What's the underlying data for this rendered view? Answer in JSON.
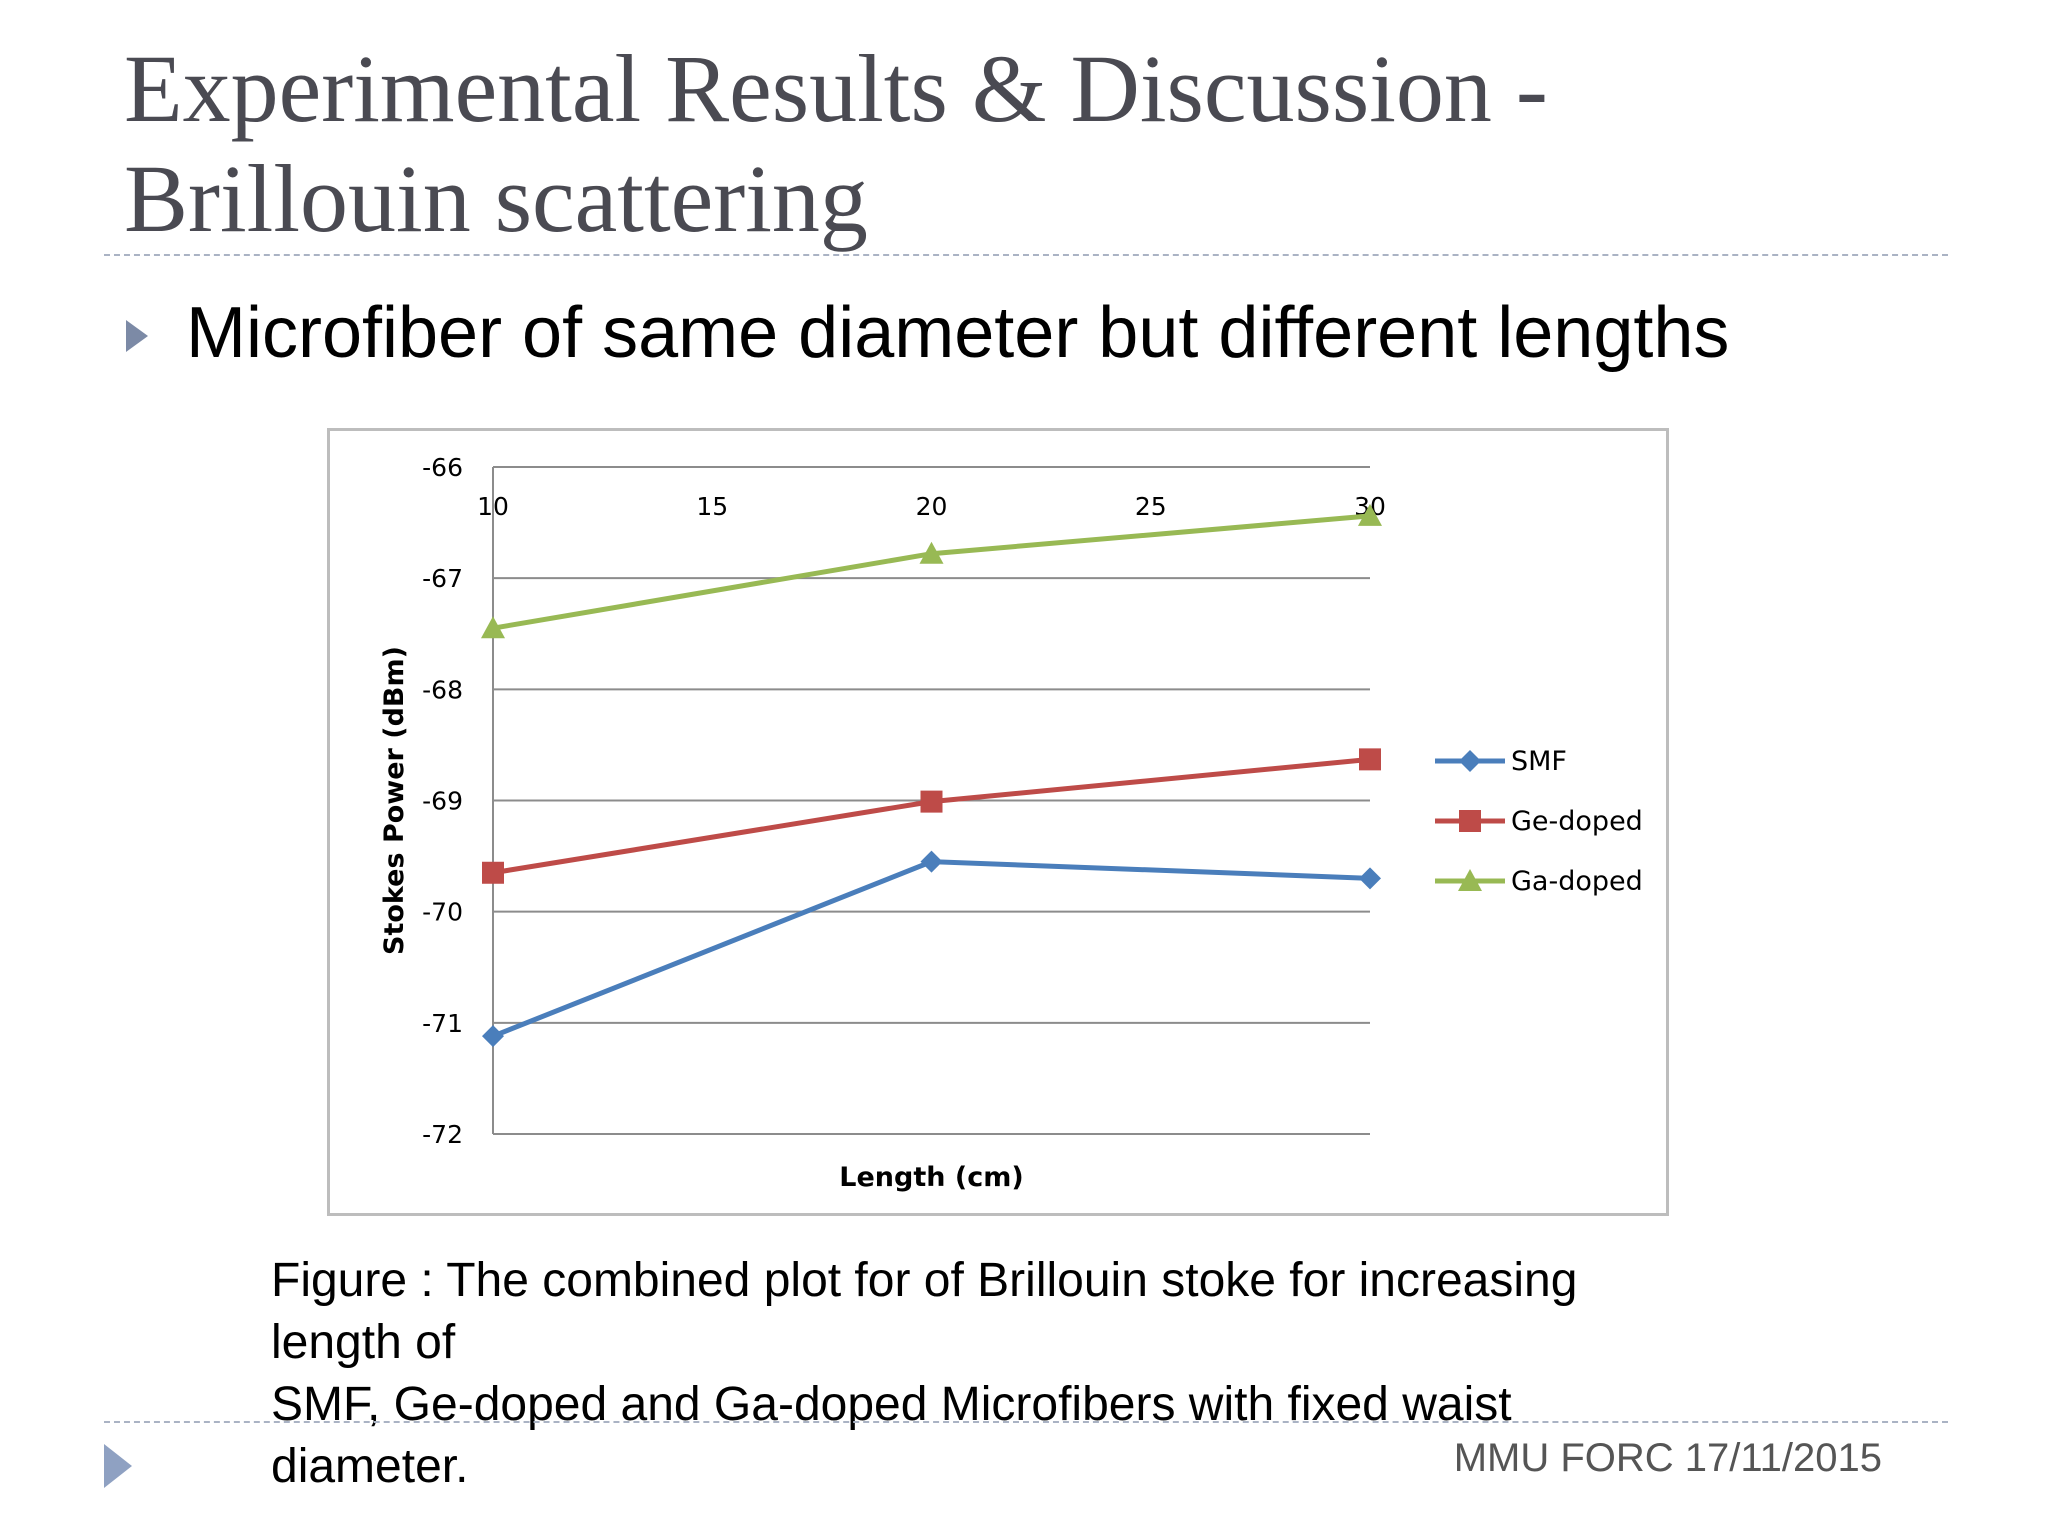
{
  "slide": {
    "title_line1": "Experimental Results & Discussion -",
    "title_line2": "Brillouin scattering",
    "bullet": "Microfiber of same diameter but different lengths",
    "caption_lines": [
      "Figure : The combined  plot for of Brillouin stoke for increasing",
      "length of",
      "SMF, Ge-doped and Ga-doped Microfibers with fixed waist",
      "diameter."
    ],
    "footer": "MMU FORC 17/11/2015"
  },
  "chart_data": {
    "type": "line",
    "title": "",
    "xlabel": "Length (cm)",
    "ylabel": "Stokes Power (dBm)",
    "x": [
      10,
      20,
      30
    ],
    "xlim": [
      10,
      30
    ],
    "ylim": [
      -72,
      -66
    ],
    "x_ticks": [
      "10",
      "15",
      "20",
      "25",
      "30"
    ],
    "y_ticks": [
      "-66",
      "-67",
      "-68",
      "-69",
      "-70",
      "-71",
      "-72"
    ],
    "x_axis_position": "top",
    "grid": true,
    "legend_position": "right",
    "series": [
      {
        "name": "SMF",
        "values": [
          -71.12,
          -69.55,
          -69.7
        ],
        "color": "#4a7ebb",
        "marker": "diamond"
      },
      {
        "name": "Ge-doped",
        "values": [
          -69.65,
          -69.01,
          -68.63
        ],
        "color": "#be4b48",
        "marker": "square"
      },
      {
        "name": "Ga-doped",
        "values": [
          -67.45,
          -66.78,
          -66.44
        ],
        "color": "#98b954",
        "marker": "triangle"
      }
    ]
  }
}
